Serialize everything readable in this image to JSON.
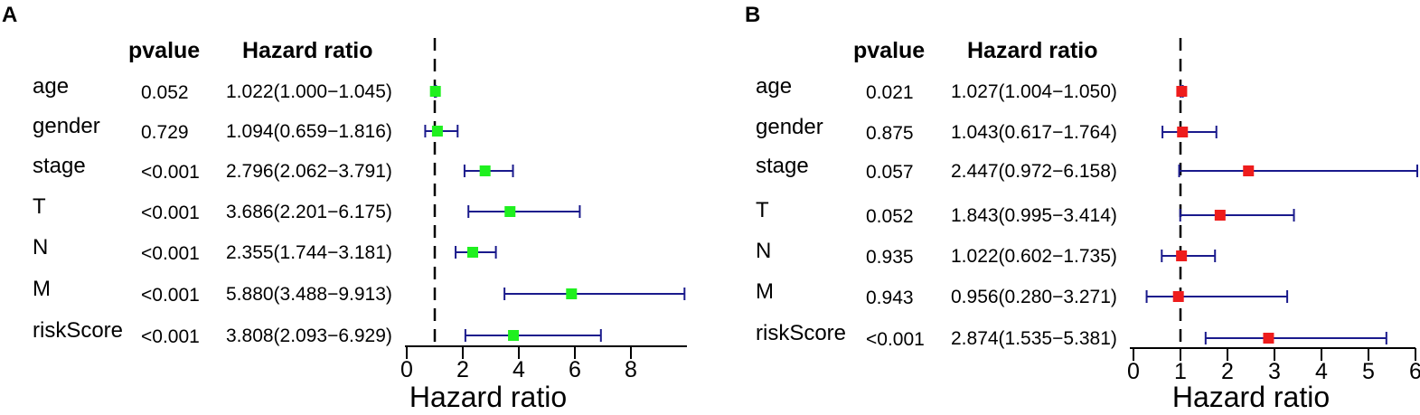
{
  "chart_data": [
    {
      "type": "forest",
      "panel_label": "A",
      "column_headers": {
        "pvalue": "pvalue",
        "hazard_ratio": "Hazard ratio"
      },
      "xlabel": "Hazard ratio",
      "xlim": [
        0,
        10
      ],
      "x_ticks": [
        0,
        2,
        4,
        6,
        8
      ],
      "tick_labels": [
        "0",
        "2",
        "4",
        "6",
        "8"
      ],
      "reference_line": 1,
      "marker_color": "#1ff01f",
      "ci_color": "#1a1a8c",
      "rows": [
        {
          "label": "age",
          "pvalue": "0.052",
          "hr_text": "1.022(1.000−1.045)",
          "hr": 1.022,
          "low": 1.0,
          "high": 1.045
        },
        {
          "label": "gender",
          "pvalue": "0.729",
          "hr_text": "1.094(0.659−1.816)",
          "hr": 1.094,
          "low": 0.659,
          "high": 1.816
        },
        {
          "label": "stage",
          "pvalue": "<0.001",
          "hr_text": "2.796(2.062−3.791)",
          "hr": 2.796,
          "low": 2.062,
          "high": 3.791
        },
        {
          "label": "T",
          "pvalue": "<0.001",
          "hr_text": "3.686(2.201−6.175)",
          "hr": 3.686,
          "low": 2.201,
          "high": 6.175
        },
        {
          "label": "N",
          "pvalue": "<0.001",
          "hr_text": "2.355(1.744−3.181)",
          "hr": 2.355,
          "low": 1.744,
          "high": 3.181
        },
        {
          "label": "M",
          "pvalue": "<0.001",
          "hr_text": "5.880(3.488−9.913)",
          "hr": 5.88,
          "low": 3.488,
          "high": 9.913
        },
        {
          "label": "riskScore",
          "pvalue": "<0.001",
          "hr_text": "3.808(2.093−6.929)",
          "hr": 3.808,
          "low": 2.093,
          "high": 6.929
        }
      ]
    },
    {
      "type": "forest",
      "panel_label": "B",
      "column_headers": {
        "pvalue": "pvalue",
        "hazard_ratio": "Hazard ratio"
      },
      "xlabel": "Hazard ratio",
      "xlim": [
        0,
        6
      ],
      "x_ticks": [
        0,
        1,
        2,
        3,
        4,
        5,
        6
      ],
      "tick_labels": [
        "0",
        "1",
        "2",
        "3",
        "4",
        "5",
        "6"
      ],
      "reference_line": 1,
      "marker_color": "#ee1c1c",
      "ci_color": "#1a1a8c",
      "rows": [
        {
          "label": "age",
          "pvalue": "0.021",
          "hr_text": "1.027(1.004−1.050)",
          "hr": 1.027,
          "low": 1.004,
          "high": 1.05
        },
        {
          "label": "gender",
          "pvalue": "0.875",
          "hr_text": "1.043(0.617−1.764)",
          "hr": 1.043,
          "low": 0.617,
          "high": 1.764
        },
        {
          "label": "stage",
          "pvalue": "0.057",
          "hr_text": "2.447(0.972−6.158)",
          "hr": 2.447,
          "low": 0.972,
          "high": 6.158
        },
        {
          "label": "T",
          "pvalue": "0.052",
          "hr_text": "1.843(0.995−3.414)",
          "hr": 1.843,
          "low": 0.995,
          "high": 3.414
        },
        {
          "label": "N",
          "pvalue": "0.935",
          "hr_text": "1.022(0.602−1.735)",
          "hr": 1.022,
          "low": 0.602,
          "high": 1.735
        },
        {
          "label": "M",
          "pvalue": "0.943",
          "hr_text": "0.956(0.280−3.271)",
          "hr": 0.956,
          "low": 0.28,
          "high": 3.271
        },
        {
          "label": "riskScore",
          "pvalue": "<0.001",
          "hr_text": "2.874(1.535−5.381)",
          "hr": 2.874,
          "low": 1.535,
          "high": 5.381
        }
      ]
    }
  ]
}
